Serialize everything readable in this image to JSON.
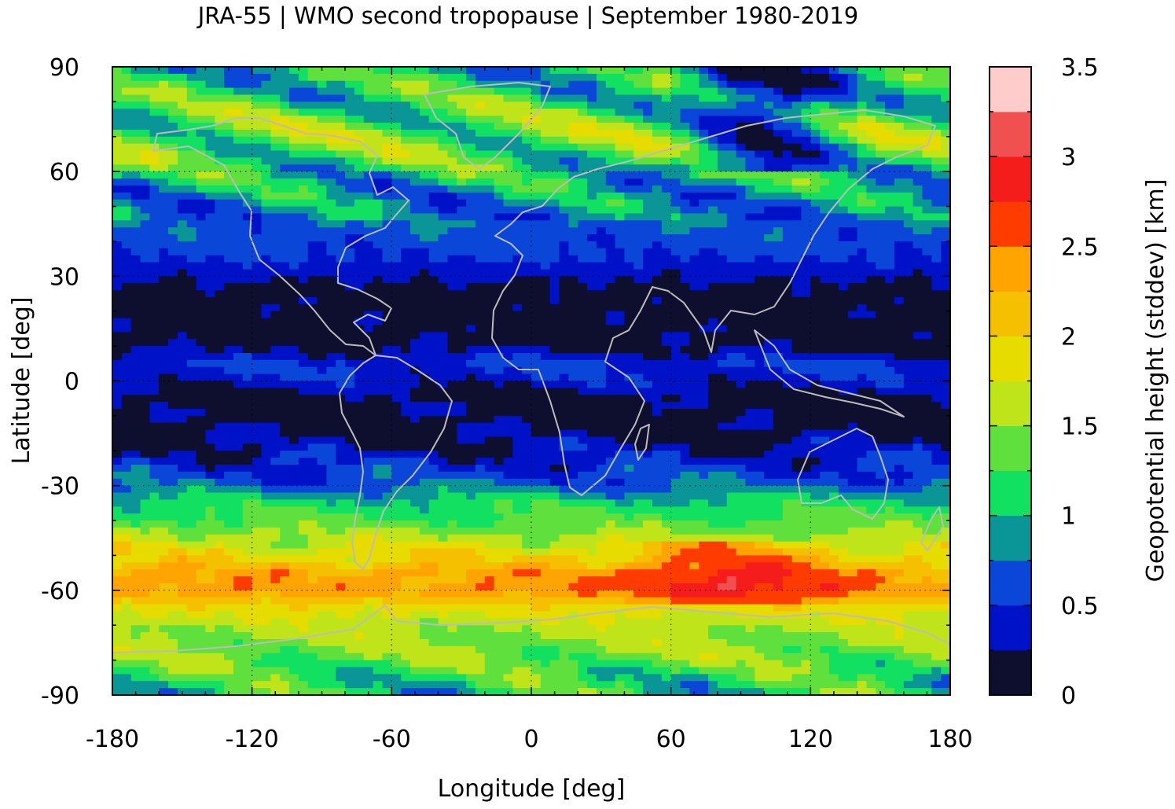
{
  "chart_data": {
    "type": "heatmap",
    "title": "JRA-55 | WMO second tropopause | September 1980-2019",
    "xlabel": "Longitude [deg]",
    "ylabel": "Latitude [deg]",
    "colorbar_label": "Geopotential height (stddev) [km]",
    "xlim": [
      -180,
      180
    ],
    "ylim": [
      -90,
      90
    ],
    "xticks": [
      -180,
      -120,
      -60,
      0,
      60,
      120,
      180
    ],
    "yticks": [
      -90,
      -60,
      -30,
      0,
      30,
      60,
      90
    ],
    "grid": true,
    "colorbar": {
      "range": [
        0,
        3.5
      ],
      "ticks": [
        0,
        0.5,
        1,
        1.5,
        2,
        2.5,
        3,
        3.5
      ],
      "levels": [
        0,
        0.25,
        0.5,
        0.75,
        1,
        1.25,
        1.5,
        1.75,
        2,
        2.25,
        2.5,
        2.75,
        3,
        3.25,
        3.5
      ],
      "colors": [
        "#0e0e2e",
        "#0012c8",
        "#0a46d8",
        "#0a9696",
        "#12e060",
        "#60e03c",
        "#c0e41a",
        "#e6dc00",
        "#f5c000",
        "#ffa400",
        "#ff3c00",
        "#f51c1c",
        "#f05050",
        "#ffcccc"
      ]
    },
    "zonal_profile": {
      "lat": [
        -90,
        -85,
        -80,
        -75,
        -70,
        -65,
        -60,
        -55,
        -50,
        -45,
        -40,
        -35,
        -30,
        -25,
        -20,
        -15,
        -10,
        -5,
        0,
        5,
        10,
        15,
        20,
        25,
        30,
        35,
        40,
        45,
        50,
        55,
        60,
        65,
        70,
        75,
        80,
        85,
        90
      ],
      "stddev_km": [
        1.1,
        1.2,
        1.4,
        1.5,
        1.6,
        1.9,
        2.4,
        2.3,
        1.9,
        1.6,
        1.3,
        1.1,
        0.7,
        0.5,
        0.3,
        0.15,
        0.1,
        0.1,
        0.4,
        0.5,
        0.15,
        0.1,
        0.1,
        0.1,
        0.3,
        0.5,
        0.6,
        0.7,
        0.8,
        0.9,
        1.1,
        1.3,
        1.4,
        1.3,
        1.2,
        1.1,
        1.0
      ]
    }
  }
}
